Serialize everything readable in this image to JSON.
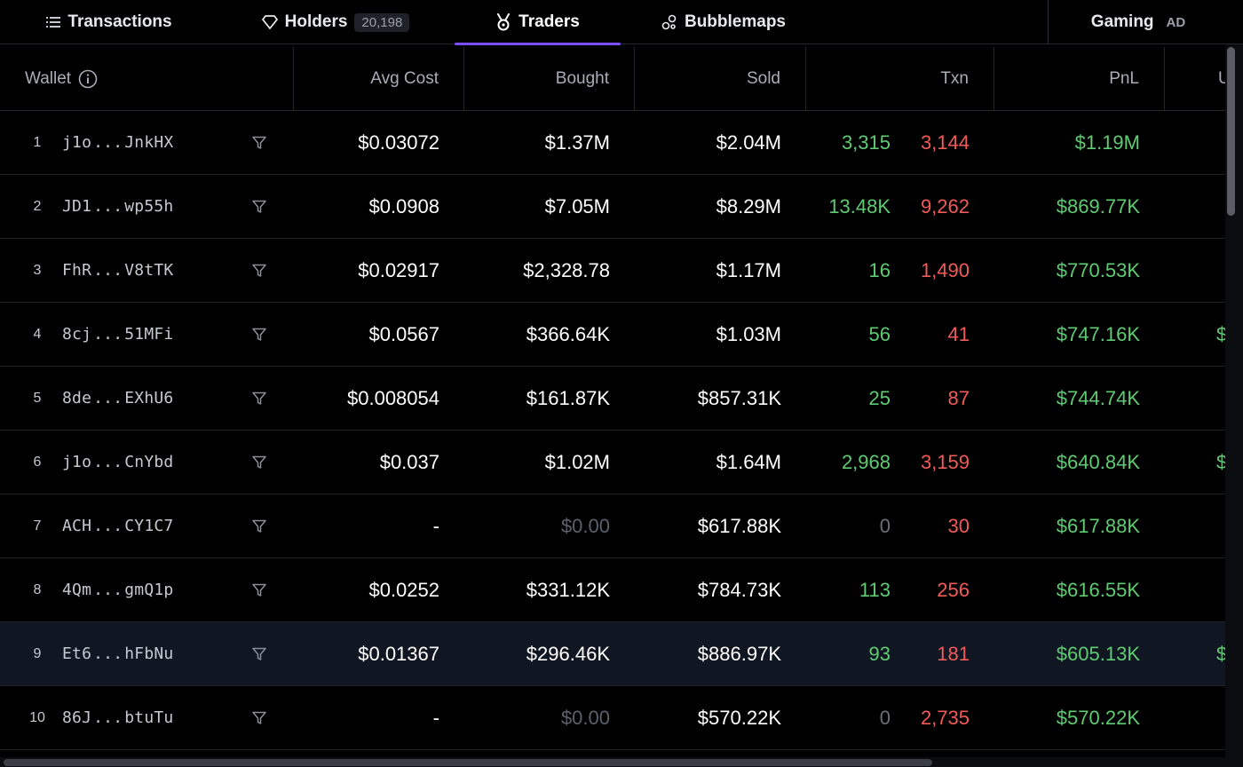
{
  "tabs": {
    "transactions": {
      "label": "Transactions",
      "icon": "list-icon"
    },
    "holders": {
      "label": "Holders",
      "count": "20,198",
      "icon": "diamond-icon"
    },
    "traders": {
      "label": "Traders",
      "icon": "medal-icon",
      "active": true
    },
    "bubblemaps": {
      "label": "Bubblemaps",
      "icon": "bubbles-icon"
    },
    "gaming": {
      "label": "Gaming",
      "badge": "AD"
    }
  },
  "colors": {
    "accent": "#7c4dff",
    "positive": "#5fcb73",
    "negative": "#f25a5a",
    "background": "#000000"
  },
  "table": {
    "columns": {
      "wallet": "Wallet",
      "avg_cost": "Avg Cost",
      "bought": "Bought",
      "sold": "Sold",
      "txn": "Txn",
      "pnl": "PnL",
      "extra": "U"
    },
    "rows": [
      {
        "rank": "1",
        "prefix": "j1o",
        "dots": "...",
        "suffix": "JnkHX",
        "avg_cost": "$0.03072",
        "bought": "$1.37M",
        "sold": "$2.04M",
        "buys": "3,315",
        "sells": "3,144",
        "pnl": "$1.19M",
        "extra": ""
      },
      {
        "rank": "2",
        "prefix": "JD1",
        "dots": "...",
        "suffix": "wp55h",
        "avg_cost": "$0.0908",
        "bought": "$7.05M",
        "sold": "$8.29M",
        "buys": "13.48K",
        "sells": "9,262",
        "pnl": "$869.77K",
        "extra": ""
      },
      {
        "rank": "3",
        "prefix": "FhR",
        "dots": "...",
        "suffix": "V8tTK",
        "avg_cost": "$0.02917",
        "bought": "$2,328.78",
        "sold": "$1.17M",
        "buys": "16",
        "sells": "1,490",
        "pnl": "$770.53K",
        "extra": ""
      },
      {
        "rank": "4",
        "prefix": "8cj",
        "dots": "...",
        "suffix": "51MFi",
        "avg_cost": "$0.0567",
        "bought": "$366.64K",
        "sold": "$1.03M",
        "buys": "56",
        "sells": "41",
        "pnl": "$747.16K",
        "extra": "$"
      },
      {
        "rank": "5",
        "prefix": "8de",
        "dots": "...",
        "suffix": "EXhU6",
        "avg_cost": "$0.008054",
        "bought": "$161.87K",
        "sold": "$857.31K",
        "buys": "25",
        "sells": "87",
        "pnl": "$744.74K",
        "extra": ""
      },
      {
        "rank": "6",
        "prefix": "j1o",
        "dots": "...",
        "suffix": "CnYbd",
        "avg_cost": "$0.037",
        "bought": "$1.02M",
        "sold": "$1.64M",
        "buys": "2,968",
        "sells": "3,159",
        "pnl": "$640.84K",
        "extra": "$"
      },
      {
        "rank": "7",
        "prefix": "ACH",
        "dots": "...",
        "suffix": "CY1C7",
        "avg_cost": "-",
        "bought": "$0.00",
        "sold": "$617.88K",
        "buys": "0",
        "sells": "30",
        "pnl": "$617.88K",
        "extra": ""
      },
      {
        "rank": "8",
        "prefix": "4Qm",
        "dots": "...",
        "suffix": "gmQ1p",
        "avg_cost": "$0.0252",
        "bought": "$331.12K",
        "sold": "$784.73K",
        "buys": "113",
        "sells": "256",
        "pnl": "$616.55K",
        "extra": ""
      },
      {
        "rank": "9",
        "prefix": "Et6",
        "dots": "...",
        "suffix": "hFbNu",
        "avg_cost": "$0.01367",
        "bought": "$296.46K",
        "sold": "$886.97K",
        "buys": "93",
        "sells": "181",
        "pnl": "$605.13K",
        "extra": "$"
      },
      {
        "rank": "10",
        "prefix": "86J",
        "dots": "...",
        "suffix": "btuTu",
        "avg_cost": "-",
        "bought": "$0.00",
        "sold": "$570.22K",
        "buys": "0",
        "sells": "2,735",
        "pnl": "$570.22K",
        "extra": ""
      }
    ]
  }
}
